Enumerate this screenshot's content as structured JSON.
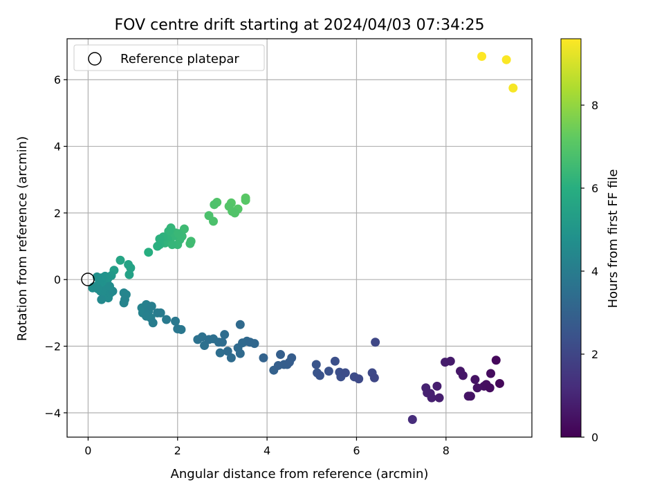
{
  "chart_data": {
    "type": "scatter",
    "title": "FOV centre drift starting at 2024/04/03 07:34:25",
    "xlabel": "Angular distance from reference (arcmin)",
    "ylabel": "Rotation from reference (arcmin)",
    "xlim": [
      -0.47,
      9.92
    ],
    "ylim": [
      -4.73,
      7.23
    ],
    "xticks": [
      0,
      2,
      4,
      6,
      8
    ],
    "yticks": [
      -4,
      -2,
      0,
      2,
      4,
      6
    ],
    "grid": true,
    "legend": {
      "placement": "upper-left",
      "entries": [
        "Reference platepar"
      ]
    },
    "reference_point": {
      "x": 0,
      "y": 0
    },
    "colorbar": {
      "label": "Hours from first FF file",
      "range": [
        0,
        9.6
      ],
      "ticks": [
        0,
        2,
        4,
        6,
        8
      ],
      "colormap": "viridis"
    },
    "points": [
      {
        "x": 8.8,
        "y": 6.7,
        "h": 9.6
      },
      {
        "x": 9.35,
        "y": 6.6,
        "h": 9.55
      },
      {
        "x": 9.5,
        "y": 5.75,
        "h": 9.5
      },
      {
        "x": 3.52,
        "y": 2.45,
        "h": 7.1
      },
      {
        "x": 3.52,
        "y": 2.38,
        "h": 7.05
      },
      {
        "x": 3.35,
        "y": 2.12,
        "h": 7.0
      },
      {
        "x": 3.2,
        "y": 2.3,
        "h": 7.0
      },
      {
        "x": 3.15,
        "y": 2.2,
        "h": 6.95
      },
      {
        "x": 3.22,
        "y": 2.05,
        "h": 6.95
      },
      {
        "x": 3.28,
        "y": 2.0,
        "h": 6.9
      },
      {
        "x": 2.88,
        "y": 2.32,
        "h": 6.9
      },
      {
        "x": 2.82,
        "y": 2.25,
        "h": 6.85
      },
      {
        "x": 2.8,
        "y": 1.75,
        "h": 6.8
      },
      {
        "x": 2.7,
        "y": 1.92,
        "h": 6.8
      },
      {
        "x": 2.3,
        "y": 1.15,
        "h": 6.6
      },
      {
        "x": 2.28,
        "y": 1.08,
        "h": 6.55
      },
      {
        "x": 2.15,
        "y": 1.52,
        "h": 6.5
      },
      {
        "x": 2.1,
        "y": 1.3,
        "h": 6.45
      },
      {
        "x": 2.05,
        "y": 1.2,
        "h": 6.4
      },
      {
        "x": 2.0,
        "y": 1.05,
        "h": 6.35
      },
      {
        "x": 1.95,
        "y": 1.4,
        "h": 6.35
      },
      {
        "x": 1.9,
        "y": 1.3,
        "h": 6.3
      },
      {
        "x": 1.85,
        "y": 1.55,
        "h": 6.3
      },
      {
        "x": 1.8,
        "y": 1.45,
        "h": 6.25
      },
      {
        "x": 1.78,
        "y": 1.2,
        "h": 6.2
      },
      {
        "x": 1.72,
        "y": 1.1,
        "h": 6.2
      },
      {
        "x": 1.68,
        "y": 1.28,
        "h": 6.15
      },
      {
        "x": 1.6,
        "y": 1.22,
        "h": 6.1
      },
      {
        "x": 1.6,
        "y": 1.05,
        "h": 6.1
      },
      {
        "x": 1.55,
        "y": 1.0,
        "h": 6.05
      },
      {
        "x": 1.35,
        "y": 0.82,
        "h": 6.0
      },
      {
        "x": 1.88,
        "y": 1.05,
        "h": 6.3
      },
      {
        "x": 2.02,
        "y": 1.38,
        "h": 6.4
      },
      {
        "x": 0.72,
        "y": 0.58,
        "h": 5.6
      },
      {
        "x": 0.9,
        "y": 0.45,
        "h": 5.55
      },
      {
        "x": 0.95,
        "y": 0.35,
        "h": 5.5
      },
      {
        "x": 0.92,
        "y": 0.15,
        "h": 5.45
      },
      {
        "x": 0.58,
        "y": 0.28,
        "h": 5.3
      },
      {
        "x": 0.52,
        "y": 0.12,
        "h": 5.1
      },
      {
        "x": 0.45,
        "y": 0.05,
        "h": 5.0
      },
      {
        "x": 0.42,
        "y": -0.05,
        "h": 4.95
      },
      {
        "x": 0.38,
        "y": 0.1,
        "h": 4.9
      },
      {
        "x": 0.35,
        "y": 0.0,
        "h": 4.9
      },
      {
        "x": 0.32,
        "y": -0.15,
        "h": 4.85
      },
      {
        "x": 0.3,
        "y": 0.05,
        "h": 4.85
      },
      {
        "x": 0.25,
        "y": -0.1,
        "h": 4.8
      },
      {
        "x": 0.2,
        "y": 0.08,
        "h": 4.8
      },
      {
        "x": 0.18,
        "y": -0.2,
        "h": 4.75
      },
      {
        "x": 0.12,
        "y": -0.22,
        "h": 4.7
      },
      {
        "x": 0.1,
        "y": -0.25,
        "h": 4.7
      },
      {
        "x": 0.28,
        "y": -0.35,
        "h": 4.65
      },
      {
        "x": 0.35,
        "y": -0.45,
        "h": 4.6
      },
      {
        "x": 0.4,
        "y": -0.3,
        "h": 4.6
      },
      {
        "x": 0.45,
        "y": -0.55,
        "h": 4.55
      },
      {
        "x": 0.5,
        "y": -0.4,
        "h": 4.55
      },
      {
        "x": 0.55,
        "y": -0.35,
        "h": 4.5
      },
      {
        "x": 0.3,
        "y": -0.6,
        "h": 4.5
      },
      {
        "x": 0.48,
        "y": -0.2,
        "h": 4.6
      },
      {
        "x": 0.22,
        "y": -0.28,
        "h": 4.65
      },
      {
        "x": 0.8,
        "y": -0.4,
        "h": 4.35
      },
      {
        "x": 0.85,
        "y": -0.45,
        "h": 4.35
      },
      {
        "x": 0.8,
        "y": -0.7,
        "h": 4.3
      },
      {
        "x": 0.82,
        "y": -0.6,
        "h": 4.3
      },
      {
        "x": 1.2,
        "y": -0.85,
        "h": 4.2
      },
      {
        "x": 1.22,
        "y": -1.0,
        "h": 4.2
      },
      {
        "x": 1.3,
        "y": -0.75,
        "h": 4.15
      },
      {
        "x": 1.35,
        "y": -0.95,
        "h": 4.1
      },
      {
        "x": 1.4,
        "y": -1.15,
        "h": 4.1
      },
      {
        "x": 1.42,
        "y": -0.8,
        "h": 4.05
      },
      {
        "x": 1.45,
        "y": -1.3,
        "h": 4.0
      },
      {
        "x": 1.55,
        "y": -1.0,
        "h": 4.0
      },
      {
        "x": 1.62,
        "y": -1.0,
        "h": 3.95
      },
      {
        "x": 1.75,
        "y": -1.2,
        "h": 3.9
      },
      {
        "x": 1.95,
        "y": -1.25,
        "h": 3.85
      },
      {
        "x": 2.0,
        "y": -1.48,
        "h": 3.8
      },
      {
        "x": 2.08,
        "y": -1.5,
        "h": 3.8
      },
      {
        "x": 1.3,
        "y": -1.1,
        "h": 4.15
      },
      {
        "x": 2.45,
        "y": -1.8,
        "h": 3.6
      },
      {
        "x": 2.55,
        "y": -1.72,
        "h": 3.55
      },
      {
        "x": 2.6,
        "y": -1.98,
        "h": 3.55
      },
      {
        "x": 2.7,
        "y": -1.8,
        "h": 3.5
      },
      {
        "x": 2.8,
        "y": -1.78,
        "h": 3.5
      },
      {
        "x": 2.92,
        "y": -1.88,
        "h": 3.45
      },
      {
        "x": 2.95,
        "y": -2.2,
        "h": 3.45
      },
      {
        "x": 3.0,
        "y": -1.88,
        "h": 3.4
      },
      {
        "x": 3.05,
        "y": -1.65,
        "h": 3.4
      },
      {
        "x": 3.12,
        "y": -2.15,
        "h": 3.35
      },
      {
        "x": 3.2,
        "y": -2.35,
        "h": 3.35
      },
      {
        "x": 3.35,
        "y": -2.05,
        "h": 3.3
      },
      {
        "x": 3.4,
        "y": -2.22,
        "h": 3.3
      },
      {
        "x": 3.45,
        "y": -1.9,
        "h": 3.25
      },
      {
        "x": 3.55,
        "y": -1.85,
        "h": 3.25
      },
      {
        "x": 3.62,
        "y": -1.88,
        "h": 3.2
      },
      {
        "x": 3.72,
        "y": -1.92,
        "h": 3.2
      },
      {
        "x": 3.4,
        "y": -1.35,
        "h": 3.3
      },
      {
        "x": 3.92,
        "y": -2.35,
        "h": 3.05
      },
      {
        "x": 4.15,
        "y": -2.72,
        "h": 2.95
      },
      {
        "x": 4.25,
        "y": -2.58,
        "h": 2.9
      },
      {
        "x": 4.3,
        "y": -2.25,
        "h": 2.9
      },
      {
        "x": 4.38,
        "y": -2.55,
        "h": 2.85
      },
      {
        "x": 4.45,
        "y": -2.55,
        "h": 2.85
      },
      {
        "x": 4.5,
        "y": -2.48,
        "h": 2.8
      },
      {
        "x": 4.55,
        "y": -2.35,
        "h": 2.8
      },
      {
        "x": 5.1,
        "y": -2.55,
        "h": 2.5
      },
      {
        "x": 5.12,
        "y": -2.8,
        "h": 2.5
      },
      {
        "x": 5.18,
        "y": -2.88,
        "h": 2.45
      },
      {
        "x": 5.38,
        "y": -2.75,
        "h": 2.4
      },
      {
        "x": 5.52,
        "y": -2.45,
        "h": 2.35
      },
      {
        "x": 5.62,
        "y": -2.78,
        "h": 2.3
      },
      {
        "x": 5.65,
        "y": -2.92,
        "h": 2.3
      },
      {
        "x": 5.75,
        "y": -2.8,
        "h": 2.25
      },
      {
        "x": 5.95,
        "y": -2.92,
        "h": 2.2
      },
      {
        "x": 6.05,
        "y": -2.98,
        "h": 2.15
      },
      {
        "x": 6.35,
        "y": -2.8,
        "h": 2.1
      },
      {
        "x": 6.4,
        "y": -2.95,
        "h": 2.05
      },
      {
        "x": 6.42,
        "y": -1.88,
        "h": 2.05
      },
      {
        "x": 7.25,
        "y": -4.2,
        "h": 1.2
      },
      {
        "x": 7.55,
        "y": -3.25,
        "h": 0.9
      },
      {
        "x": 7.58,
        "y": -3.4,
        "h": 0.9
      },
      {
        "x": 7.65,
        "y": -3.42,
        "h": 0.85
      },
      {
        "x": 7.68,
        "y": -3.55,
        "h": 0.85
      },
      {
        "x": 7.8,
        "y": -3.2,
        "h": 0.8
      },
      {
        "x": 7.85,
        "y": -3.55,
        "h": 0.8
      },
      {
        "x": 7.98,
        "y": -2.48,
        "h": 0.75
      },
      {
        "x": 8.1,
        "y": -2.45,
        "h": 0.7
      },
      {
        "x": 8.32,
        "y": -2.75,
        "h": 0.6
      },
      {
        "x": 8.38,
        "y": -2.88,
        "h": 0.6
      },
      {
        "x": 8.5,
        "y": -3.5,
        "h": 0.55
      },
      {
        "x": 8.55,
        "y": -3.5,
        "h": 0.5
      },
      {
        "x": 8.65,
        "y": -3.0,
        "h": 0.45
      },
      {
        "x": 8.7,
        "y": -3.25,
        "h": 0.45
      },
      {
        "x": 8.85,
        "y": -3.2,
        "h": 0.4
      },
      {
        "x": 8.9,
        "y": -3.15,
        "h": 0.35
      },
      {
        "x": 8.98,
        "y": -3.25,
        "h": 0.3
      },
      {
        "x": 9.0,
        "y": -2.82,
        "h": 0.3
      },
      {
        "x": 9.12,
        "y": -2.42,
        "h": 0.2
      },
      {
        "x": 9.2,
        "y": -3.12,
        "h": 0.15
      }
    ]
  }
}
